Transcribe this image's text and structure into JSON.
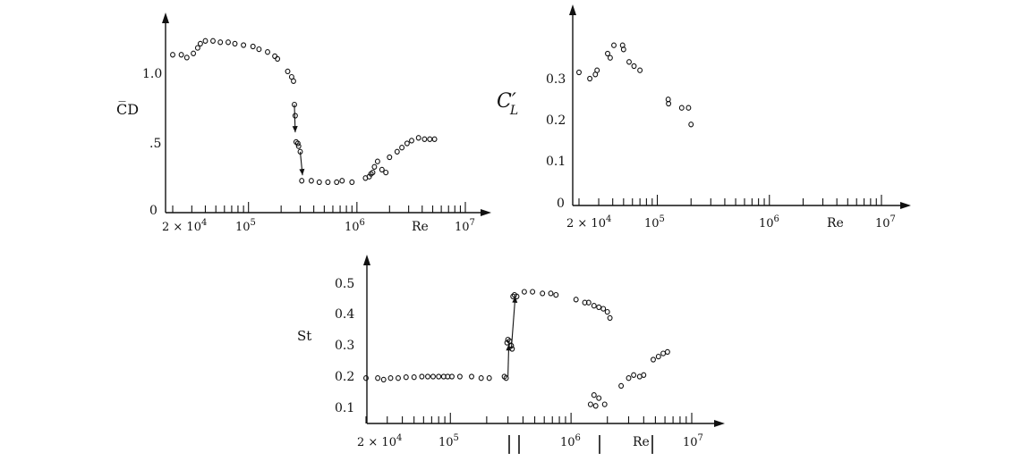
{
  "figure": {
    "cd_ylabel": "C̅D",
    "cl_ylabel_main": "C′",
    "cl_ylabel_sub": "L",
    "st_ylabel": "St",
    "re_label": "Re"
  },
  "chart_data": [
    {
      "type": "scatter",
      "id": "cd",
      "title": "",
      "xlabel": "Re",
      "ylabel": "C̅D",
      "x_scale": "log",
      "xlim": [
        15000,
        10000000
      ],
      "ylim": [
        0,
        1.4
      ],
      "x_tick_labels": [
        "2 × 10^4",
        "10^5",
        "10^6",
        "10^7"
      ],
      "y_tick_labels": [
        "0",
        ".5",
        "1.0"
      ],
      "series": [
        {
          "points": [
            [
              20000,
              1.14
            ],
            [
              24000,
              1.14
            ],
            [
              27000,
              1.12
            ],
            [
              31000,
              1.15
            ],
            [
              34000,
              1.19
            ],
            [
              36000,
              1.22
            ],
            [
              40000,
              1.24
            ],
            [
              47000,
              1.24
            ],
            [
              55000,
              1.23
            ],
            [
              65000,
              1.23
            ],
            [
              75000,
              1.22
            ],
            [
              90000,
              1.21
            ],
            [
              110000,
              1.2
            ],
            [
              125000,
              1.18
            ],
            [
              150000,
              1.16
            ],
            [
              175000,
              1.13
            ],
            [
              185000,
              1.11
            ],
            [
              230000,
              1.02
            ],
            [
              250000,
              0.98
            ],
            [
              260000,
              0.95
            ],
            [
              265000,
              0.78
            ],
            [
              270000,
              0.7
            ],
            [
              275000,
              0.51
            ],
            [
              285000,
              0.5
            ],
            [
              290000,
              0.48
            ],
            [
              300000,
              0.44
            ],
            [
              310000,
              0.23
            ],
            [
              380000,
              0.23
            ],
            [
              450000,
              0.22
            ],
            [
              540000,
              0.22
            ],
            [
              650000,
              0.22
            ],
            [
              730000,
              0.23
            ],
            [
              900000,
              0.22
            ],
            [
              1200000,
              0.25
            ],
            [
              1300000,
              0.26
            ],
            [
              1350000,
              0.28
            ],
            [
              1400000,
              0.29
            ],
            [
              1450000,
              0.33
            ],
            [
              1550000,
              0.37
            ],
            [
              1700000,
              0.31
            ],
            [
              1850000,
              0.29
            ],
            [
              2000000,
              0.4
            ],
            [
              2350000,
              0.44
            ],
            [
              2600000,
              0.47
            ],
            [
              2900000,
              0.5
            ],
            [
              3200000,
              0.52
            ],
            [
              3700000,
              0.54
            ],
            [
              4200000,
              0.53
            ],
            [
              4700000,
              0.53
            ],
            [
              5200000,
              0.53
            ]
          ]
        }
      ],
      "arrows": [
        [
          265000,
          0.78,
          270000,
          0.58
        ],
        [
          300000,
          0.44,
          315000,
          0.27
        ]
      ]
    },
    {
      "type": "scatter",
      "id": "cl",
      "title": "",
      "xlabel": "Re",
      "ylabel": "C′L",
      "x_scale": "log",
      "xlim": [
        15000,
        10000000
      ],
      "ylim": [
        0,
        0.42
      ],
      "x_tick_labels": [
        "2 × 10^4",
        "10^5",
        "10^6",
        "10^7"
      ],
      "y_tick_labels": [
        "0",
        "0.1",
        "0.2",
        "0.3"
      ],
      "series": [
        {
          "points": [
            [
              20000,
              0.315
            ],
            [
              25000,
              0.3
            ],
            [
              28000,
              0.31
            ],
            [
              29000,
              0.32
            ],
            [
              36000,
              0.36
            ],
            [
              38000,
              0.35
            ],
            [
              41000,
              0.38
            ],
            [
              49000,
              0.38
            ],
            [
              50000,
              0.37
            ],
            [
              56000,
              0.34
            ],
            [
              62000,
              0.33
            ],
            [
              70000,
              0.32
            ],
            [
              125000,
              0.25
            ],
            [
              126000,
              0.24
            ],
            [
              165000,
              0.23
            ],
            [
              190000,
              0.23
            ],
            [
              200000,
              0.19
            ]
          ]
        }
      ]
    },
    {
      "type": "scatter",
      "id": "st",
      "title": "",
      "xlabel": "Re",
      "ylabel": "St",
      "x_scale": "log",
      "xlim": [
        15000,
        10000000
      ],
      "ylim": [
        0.05,
        0.55
      ],
      "x_tick_labels": [
        "2 × 10^4",
        "10^5",
        "10^6",
        "10^7"
      ],
      "y_tick_labels": [
        "0.1",
        "0.2",
        "0.3",
        "0.4",
        "0.5"
      ],
      "series": [
        {
          "points": [
            [
              20000,
              0.195
            ],
            [
              25000,
              0.195
            ],
            [
              28000,
              0.19
            ],
            [
              32000,
              0.195
            ],
            [
              37000,
              0.195
            ],
            [
              43000,
              0.198
            ],
            [
              50000,
              0.198
            ],
            [
              58000,
              0.2
            ],
            [
              65000,
              0.2
            ],
            [
              72000,
              0.2
            ],
            [
              80000,
              0.2
            ],
            [
              88000,
              0.2
            ],
            [
              95000,
              0.2
            ],
            [
              103000,
              0.2
            ],
            [
              120000,
              0.2
            ],
            [
              150000,
              0.2
            ],
            [
              180000,
              0.195
            ],
            [
              210000,
              0.195
            ],
            [
              280000,
              0.2
            ],
            [
              290000,
              0.195
            ],
            [
              295000,
              0.31
            ],
            [
              300000,
              0.32
            ],
            [
              310000,
              0.315
            ],
            [
              320000,
              0.3
            ],
            [
              325000,
              0.29
            ],
            [
              330000,
              0.46
            ],
            [
              340000,
              0.465
            ],
            [
              355000,
              0.46
            ],
            [
              410000,
              0.475
            ],
            [
              480000,
              0.475
            ],
            [
              580000,
              0.47
            ],
            [
              680000,
              0.47
            ],
            [
              750000,
              0.465
            ],
            [
              1100000,
              0.45
            ],
            [
              1300000,
              0.44
            ],
            [
              1400000,
              0.44
            ],
            [
              1550000,
              0.43
            ],
            [
              1700000,
              0.425
            ],
            [
              1850000,
              0.42
            ],
            [
              2000000,
              0.41
            ],
            [
              2100000,
              0.39
            ],
            [
              1450000,
              0.11
            ],
            [
              1550000,
              0.14
            ],
            [
              1600000,
              0.105
            ],
            [
              1700000,
              0.13
            ],
            [
              1900000,
              0.11
            ],
            [
              2600000,
              0.17
            ],
            [
              3000000,
              0.195
            ],
            [
              3300000,
              0.205
            ],
            [
              3700000,
              0.2
            ],
            [
              4000000,
              0.205
            ],
            [
              4800000,
              0.255
            ],
            [
              5300000,
              0.265
            ],
            [
              5800000,
              0.275
            ],
            [
              6300000,
              0.28
            ]
          ]
        }
      ],
      "arrows": [
        [
          300000,
          0.2,
          305000,
          0.305
        ],
        [
          320000,
          0.29,
          345000,
          0.46
        ]
      ]
    }
  ]
}
